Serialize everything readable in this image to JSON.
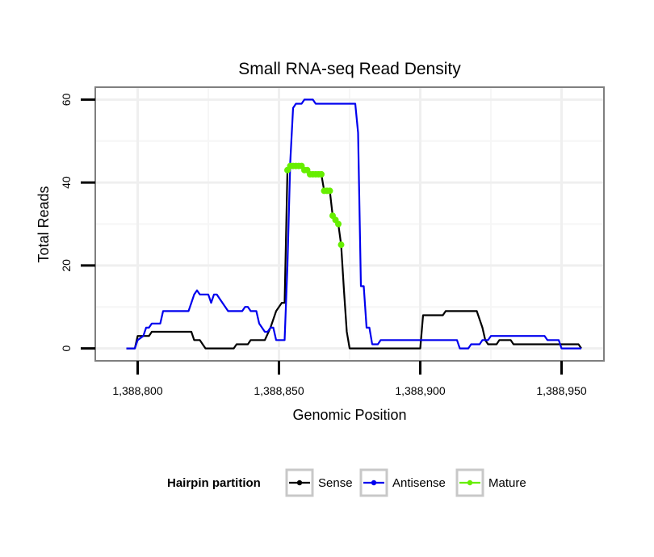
{
  "chart_data": {
    "type": "line",
    "title": "Small RNA-seq Read Density",
    "xlabel": "Genomic Position",
    "ylabel": "Total Reads",
    "xlim": [
      1388785,
      1388965
    ],
    "ylim": [
      -3,
      63
    ],
    "xticks": [
      1388800,
      1388850,
      1388900,
      1388950
    ],
    "xtick_labels": [
      "1,388,800",
      "1,388,850",
      "1,388,900",
      "1,388,950"
    ],
    "yticks": [
      0,
      20,
      40,
      60
    ],
    "ytick_labels": [
      "0",
      "20",
      "40",
      "60"
    ],
    "grid": true,
    "legend": {
      "title": "Hairpin partition",
      "position": "bottom",
      "entries": [
        "Sense",
        "Antisense",
        "Mature"
      ]
    },
    "series": [
      {
        "name": "Sense",
        "color": "#000000",
        "style": "line",
        "points": [
          [
            1388796,
            0
          ],
          [
            1388799,
            0
          ],
          [
            1388800,
            3
          ],
          [
            1388804,
            3
          ],
          [
            1388805,
            4
          ],
          [
            1388808,
            4
          ],
          [
            1388813,
            4
          ],
          [
            1388819,
            4
          ],
          [
            1388820,
            2
          ],
          [
            1388822,
            2
          ],
          [
            1388823,
            1
          ],
          [
            1388824,
            0
          ],
          [
            1388832,
            0
          ],
          [
            1388834,
            0
          ],
          [
            1388835,
            1
          ],
          [
            1388839,
            1
          ],
          [
            1388840,
            2
          ],
          [
            1388843,
            2
          ],
          [
            1388844,
            2
          ],
          [
            1388845,
            2
          ],
          [
            1388847,
            5
          ],
          [
            1388849,
            9
          ],
          [
            1388851,
            11
          ],
          [
            1388852,
            11
          ],
          [
            1388853,
            43
          ],
          [
            1388854,
            44
          ],
          [
            1388855,
            44
          ],
          [
            1388856,
            44
          ],
          [
            1388857,
            44
          ],
          [
            1388858,
            44
          ],
          [
            1388859,
            43
          ],
          [
            1388860,
            43
          ],
          [
            1388861,
            42
          ],
          [
            1388862,
            42
          ],
          [
            1388863,
            42
          ],
          [
            1388864,
            42
          ],
          [
            1388865,
            42
          ],
          [
            1388866,
            38
          ],
          [
            1388867,
            38
          ],
          [
            1388868,
            38
          ],
          [
            1388869,
            32
          ],
          [
            1388870,
            31
          ],
          [
            1388871,
            30
          ],
          [
            1388872,
            25
          ],
          [
            1388873,
            14
          ],
          [
            1388874,
            4
          ],
          [
            1388875,
            0
          ],
          [
            1388881,
            0
          ],
          [
            1388890,
            0
          ],
          [
            1388900,
            0
          ],
          [
            1388901,
            8
          ],
          [
            1388908,
            8
          ],
          [
            1388909,
            9
          ],
          [
            1388912,
            9
          ],
          [
            1388920,
            9
          ],
          [
            1388921,
            7
          ],
          [
            1388922,
            5
          ],
          [
            1388923,
            2
          ],
          [
            1388924,
            1
          ],
          [
            1388927,
            1
          ],
          [
            1388928,
            2
          ],
          [
            1388932,
            2
          ],
          [
            1388933,
            1
          ],
          [
            1388944,
            1
          ],
          [
            1388950,
            1
          ],
          [
            1388956,
            1
          ],
          [
            1388957,
            0
          ]
        ]
      },
      {
        "name": "Antisense",
        "color": "#0000ee",
        "style": "line",
        "points": [
          [
            1388796,
            0
          ],
          [
            1388799,
            0
          ],
          [
            1388800,
            2
          ],
          [
            1388802,
            3
          ],
          [
            1388803,
            5
          ],
          [
            1388804,
            5
          ],
          [
            1388805,
            6
          ],
          [
            1388808,
            6
          ],
          [
            1388809,
            9
          ],
          [
            1388818,
            9
          ],
          [
            1388819,
            11
          ],
          [
            1388820,
            13
          ],
          [
            1388821,
            14
          ],
          [
            1388822,
            13
          ],
          [
            1388825,
            13
          ],
          [
            1388826,
            11
          ],
          [
            1388827,
            13
          ],
          [
            1388828,
            13
          ],
          [
            1388829,
            12
          ],
          [
            1388830,
            11
          ],
          [
            1388831,
            10
          ],
          [
            1388832,
            9
          ],
          [
            1388837,
            9
          ],
          [
            1388838,
            10
          ],
          [
            1388839,
            10
          ],
          [
            1388840,
            9
          ],
          [
            1388842,
            9
          ],
          [
            1388843,
            6
          ],
          [
            1388844,
            5
          ],
          [
            1388845,
            4
          ],
          [
            1388846,
            4
          ],
          [
            1388847,
            5
          ],
          [
            1388848,
            5
          ],
          [
            1388849,
            2
          ],
          [
            1388852,
            2
          ],
          [
            1388853,
            20
          ],
          [
            1388854,
            45
          ],
          [
            1388855,
            58
          ],
          [
            1388856,
            59
          ],
          [
            1388857,
            59
          ],
          [
            1388858,
            59
          ],
          [
            1388859,
            60
          ],
          [
            1388862,
            60
          ],
          [
            1388863,
            59
          ],
          [
            1388870,
            59
          ],
          [
            1388877,
            59
          ],
          [
            1388878,
            52
          ],
          [
            1388879,
            15
          ],
          [
            1388880,
            15
          ],
          [
            1388881,
            5
          ],
          [
            1388882,
            5
          ],
          [
            1388883,
            1
          ],
          [
            1388885,
            1
          ],
          [
            1388886,
            2
          ],
          [
            1388897,
            2
          ],
          [
            1388905,
            2
          ],
          [
            1388913,
            2
          ],
          [
            1388914,
            0
          ],
          [
            1388917,
            0
          ],
          [
            1388918,
            1
          ],
          [
            1388921,
            1
          ],
          [
            1388922,
            2
          ],
          [
            1388924,
            2
          ],
          [
            1388925,
            3
          ],
          [
            1388933,
            3
          ],
          [
            1388941,
            3
          ],
          [
            1388944,
            3
          ],
          [
            1388945,
            2
          ],
          [
            1388949,
            2
          ],
          [
            1388950,
            0
          ],
          [
            1388957,
            0
          ]
        ]
      },
      {
        "name": "Mature",
        "color": "#66ee00",
        "style": "points",
        "points": [
          [
            1388853,
            43
          ],
          [
            1388854,
            44
          ],
          [
            1388855,
            44
          ],
          [
            1388856,
            44
          ],
          [
            1388857,
            44
          ],
          [
            1388858,
            44
          ],
          [
            1388859,
            43
          ],
          [
            1388860,
            43
          ],
          [
            1388861,
            42
          ],
          [
            1388862,
            42
          ],
          [
            1388863,
            42
          ],
          [
            1388864,
            42
          ],
          [
            1388865,
            42
          ],
          [
            1388866,
            38
          ],
          [
            1388867,
            38
          ],
          [
            1388868,
            38
          ],
          [
            1388869,
            32
          ],
          [
            1388870,
            31
          ],
          [
            1388871,
            30
          ],
          [
            1388872,
            25
          ]
        ]
      }
    ]
  }
}
